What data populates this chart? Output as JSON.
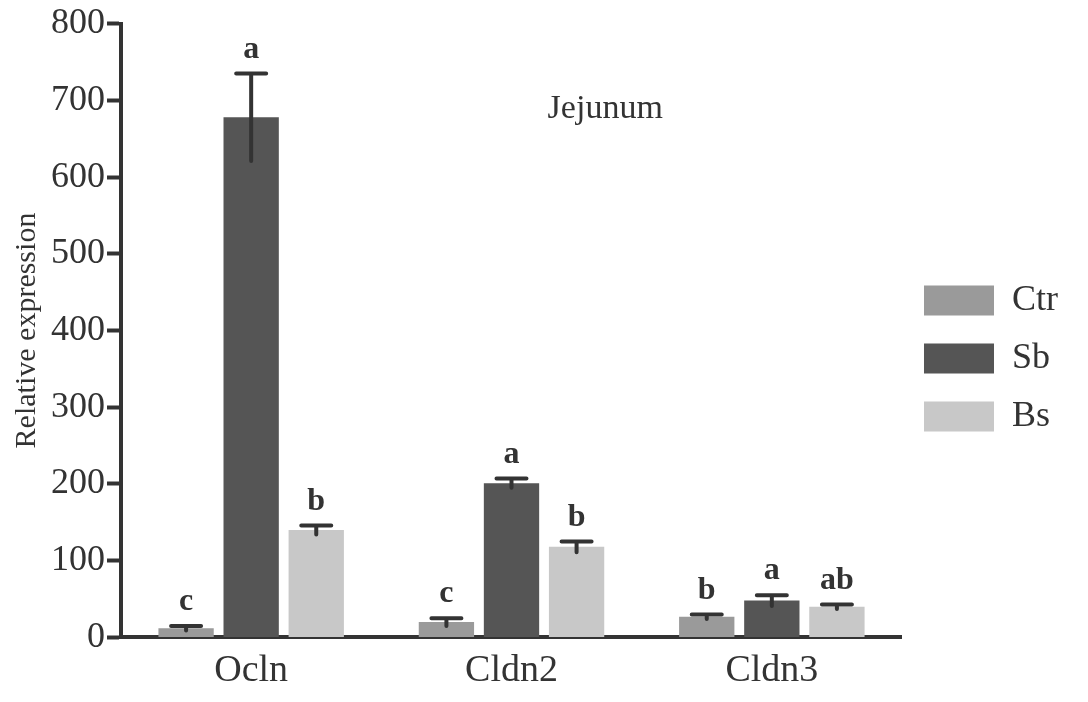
{
  "chart_data": {
    "type": "bar",
    "title": "Jejunum",
    "ylabel": "Relative expression",
    "categories": [
      "Ocln",
      "Cldn2",
      "Cldn3"
    ],
    "series": [
      {
        "name": "Ctr",
        "color": "#9a9a9a",
        "values": [
          12,
          20,
          27
        ],
        "errors": [
          3,
          5,
          3
        ]
      },
      {
        "name": "Sb",
        "color": "#555555",
        "values": [
          678,
          201,
          48
        ],
        "errors": [
          57,
          6,
          7
        ]
      },
      {
        "name": "Bs",
        "color": "#c8c8c8",
        "values": [
          140,
          118,
          40
        ],
        "errors": [
          6,
          7,
          3
        ]
      }
    ],
    "ylim": [
      0,
      800
    ],
    "yticks": [
      0,
      100,
      200,
      300,
      400,
      500,
      600,
      700,
      800
    ],
    "grid": false,
    "legend": "right",
    "annotations": [
      "c",
      "a",
      "b",
      "c",
      "a",
      "b",
      "b",
      "a",
      "ab"
    ]
  }
}
